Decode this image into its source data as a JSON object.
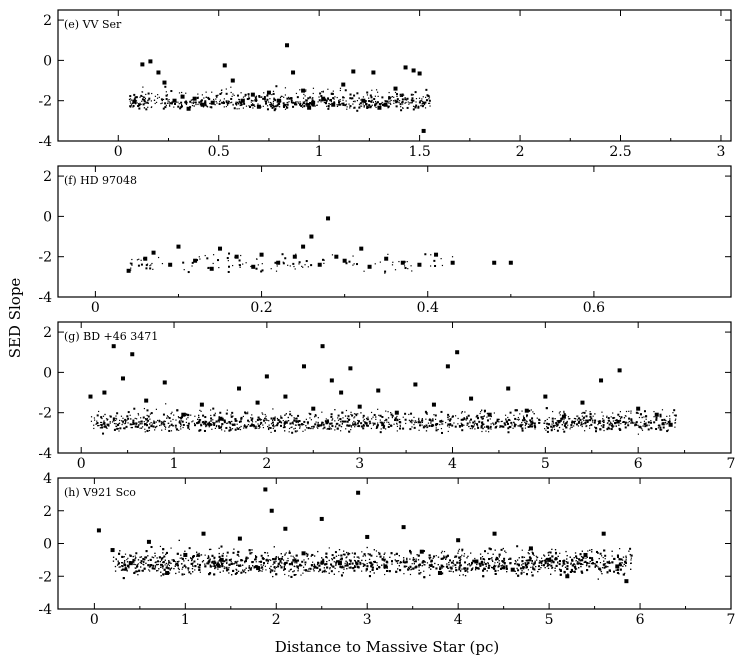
{
  "figure": {
    "ylabel": "SED Slope",
    "xlabel": "Distance to Massive Star (pc)"
  },
  "chart_data": [
    {
      "type": "scatter",
      "label": "(e) VV Ser",
      "xlim": [
        -0.3,
        3.05
      ],
      "ylim": [
        -4,
        2.5
      ],
      "xticks": [
        0,
        0.5,
        1,
        1.5,
        2,
        2.5,
        3
      ],
      "xtick_labels": [
        "0",
        "0.5",
        "1",
        "1.5",
        "2",
        "2.5",
        "3"
      ],
      "yticks": [
        -4,
        -2,
        0,
        2
      ],
      "ytick_labels": [
        "-4",
        "-2",
        "0",
        "2"
      ],
      "grid": false,
      "points": [
        [
          0.08,
          -2.05
        ],
        [
          0.12,
          -0.2
        ],
        [
          0.16,
          -0.05
        ],
        [
          0.2,
          -0.6
        ],
        [
          0.23,
          -1.1
        ],
        [
          0.28,
          -2.0
        ],
        [
          0.32,
          -1.8
        ],
        [
          0.38,
          -1.9
        ],
        [
          0.42,
          -2.2
        ],
        [
          0.47,
          -2.1
        ],
        [
          0.53,
          -0.25
        ],
        [
          0.57,
          -1.0
        ],
        [
          0.62,
          -2.0
        ],
        [
          0.67,
          -1.7
        ],
        [
          0.7,
          -2.3
        ],
        [
          0.75,
          -1.6
        ],
        [
          0.8,
          -2.0
        ],
        [
          0.84,
          0.75
        ],
        [
          0.87,
          -0.6
        ],
        [
          0.92,
          -1.5
        ],
        [
          0.97,
          -2.1
        ],
        [
          1.02,
          -1.9
        ],
        [
          1.07,
          -2.2
        ],
        [
          1.12,
          -1.2
        ],
        [
          1.17,
          -0.55
        ],
        [
          1.22,
          -2.0
        ],
        [
          1.27,
          -0.6
        ],
        [
          1.33,
          -2.2
        ],
        [
          1.38,
          -1.4
        ],
        [
          1.43,
          -0.35
        ],
        [
          1.47,
          -0.5
        ],
        [
          1.5,
          -0.65
        ],
        [
          1.52,
          -3.5
        ],
        [
          0.35,
          -2.4
        ],
        [
          0.95,
          -2.35
        ],
        [
          1.3,
          -2.35
        ]
      ]
    },
    {
      "type": "scatter",
      "label": "(f) HD 97048",
      "xlim": [
        -0.045,
        0.765
      ],
      "ylim": [
        -4,
        2.5
      ],
      "xticks": [
        0,
        0.2,
        0.4,
        0.6
      ],
      "xtick_labels": [
        "0",
        "0.2",
        "0.4",
        "0.6"
      ],
      "yticks": [
        -4,
        -2,
        0,
        2
      ],
      "ytick_labels": [
        "-4",
        "-2",
        "0",
        "2"
      ],
      "grid": false,
      "points": [
        [
          0.04,
          -2.7
        ],
        [
          0.06,
          -2.1
        ],
        [
          0.07,
          -1.8
        ],
        [
          0.09,
          -2.4
        ],
        [
          0.1,
          -1.5
        ],
        [
          0.12,
          -2.2
        ],
        [
          0.14,
          -2.6
        ],
        [
          0.15,
          -1.6
        ],
        [
          0.17,
          -2.0
        ],
        [
          0.19,
          -2.5
        ],
        [
          0.2,
          -1.9
        ],
        [
          0.22,
          -2.3
        ],
        [
          0.24,
          -2.0
        ],
        [
          0.25,
          -1.5
        ],
        [
          0.26,
          -1.0
        ],
        [
          0.27,
          -2.4
        ],
        [
          0.28,
          -0.1
        ],
        [
          0.29,
          -2.0
        ],
        [
          0.3,
          -2.2
        ],
        [
          0.32,
          -1.6
        ],
        [
          0.33,
          -2.5
        ],
        [
          0.35,
          -2.1
        ],
        [
          0.37,
          -2.3
        ],
        [
          0.39,
          -2.4
        ],
        [
          0.41,
          -1.9
        ],
        [
          0.43,
          -2.3
        ],
        [
          0.48,
          -2.3
        ],
        [
          0.5,
          -2.3
        ]
      ]
    },
    {
      "type": "scatter",
      "label": "(g) BD +46 3471",
      "xlim": [
        -0.25,
        7
      ],
      "ylim": [
        -4,
        2.5
      ],
      "xticks": [
        0,
        1,
        2,
        3,
        4,
        5,
        6,
        7
      ],
      "xtick_labels": [
        "0",
        "1",
        "2",
        "3",
        "4",
        "5",
        "6",
        "7"
      ],
      "yticks": [
        -4,
        -2,
        0,
        2
      ],
      "ytick_labels": [
        "-4",
        "-2",
        "0",
        "2"
      ],
      "grid": false,
      "points": [
        [
          0.1,
          -1.2
        ],
        [
          0.25,
          -1.0
        ],
        [
          0.35,
          1.3
        ],
        [
          0.45,
          -0.3
        ],
        [
          0.55,
          0.9
        ],
        [
          0.7,
          -1.4
        ],
        [
          0.9,
          -0.5
        ],
        [
          1.1,
          -2.1
        ],
        [
          1.3,
          -1.6
        ],
        [
          1.5,
          -2.3
        ],
        [
          1.7,
          -0.8
        ],
        [
          1.9,
          -1.5
        ],
        [
          2.0,
          -0.2
        ],
        [
          2.2,
          -1.2
        ],
        [
          2.4,
          0.3
        ],
        [
          2.5,
          -1.8
        ],
        [
          2.6,
          1.3
        ],
        [
          2.7,
          -0.4
        ],
        [
          2.8,
          -1.0
        ],
        [
          2.9,
          0.2
        ],
        [
          3.0,
          -1.7
        ],
        [
          3.2,
          -0.9
        ],
        [
          3.4,
          -2.0
        ],
        [
          3.6,
          -0.6
        ],
        [
          3.8,
          -1.6
        ],
        [
          3.95,
          0.3
        ],
        [
          4.05,
          1.0
        ],
        [
          4.2,
          -1.3
        ],
        [
          4.4,
          -2.1
        ],
        [
          4.6,
          -0.8
        ],
        [
          4.8,
          -1.9
        ],
        [
          5.0,
          -1.2
        ],
        [
          5.2,
          -2.2
        ],
        [
          5.4,
          -1.5
        ],
        [
          5.6,
          -0.4
        ],
        [
          5.8,
          0.1
        ],
        [
          6.0,
          -1.8
        ],
        [
          6.2,
          -2.1
        ],
        [
          6.35,
          -2.6
        ]
      ]
    },
    {
      "type": "scatter",
      "label": "(h) V921 Sco",
      "xlim": [
        -0.4,
        7
      ],
      "ylim": [
        -4,
        4
      ],
      "xticks": [
        0,
        1,
        2,
        3,
        4,
        5,
        6,
        7
      ],
      "xtick_labels": [
        "0",
        "1",
        "2",
        "3",
        "4",
        "5",
        "6",
        "7"
      ],
      "yticks": [
        -4,
        -2,
        0,
        2,
        4
      ],
      "ytick_labels": [
        "-4",
        "-2",
        "0",
        "2",
        "4"
      ],
      "grid": false,
      "points": [
        [
          0.05,
          0.8
        ],
        [
          0.2,
          -0.4
        ],
        [
          0.4,
          -1.2
        ],
        [
          0.6,
          0.1
        ],
        [
          0.8,
          -1.8
        ],
        [
          1.0,
          -0.7
        ],
        [
          1.2,
          0.6
        ],
        [
          1.4,
          -1.0
        ],
        [
          1.6,
          0.3
        ],
        [
          1.8,
          -1.5
        ],
        [
          1.88,
          3.3
        ],
        [
          1.95,
          2.0
        ],
        [
          2.1,
          0.9
        ],
        [
          2.3,
          -0.6
        ],
        [
          2.5,
          1.5
        ],
        [
          2.7,
          -1.2
        ],
        [
          2.9,
          3.1
        ],
        [
          3.0,
          0.4
        ],
        [
          3.2,
          -1.4
        ],
        [
          3.4,
          1.0
        ],
        [
          3.6,
          -0.5
        ],
        [
          3.8,
          -1.8
        ],
        [
          4.0,
          0.2
        ],
        [
          4.2,
          -1.1
        ],
        [
          4.4,
          0.6
        ],
        [
          4.6,
          -1.6
        ],
        [
          4.8,
          -0.3
        ],
        [
          5.0,
          -1.0
        ],
        [
          5.2,
          -2.0
        ],
        [
          5.4,
          -0.7
        ],
        [
          5.6,
          0.6
        ],
        [
          5.75,
          -1.4
        ],
        [
          5.85,
          -2.3
        ]
      ]
    }
  ]
}
